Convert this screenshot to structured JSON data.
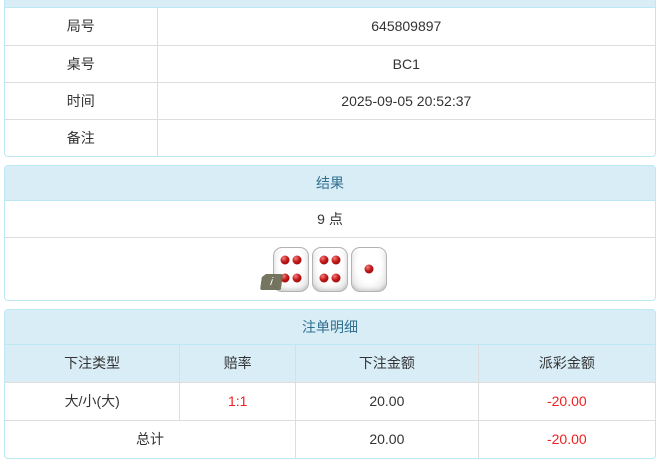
{
  "colors": {
    "panel_header_bg": "#d9edf7",
    "panel_header_text": "#31708f",
    "panel_border": "#bce8f1",
    "row_divider": "#dddddd",
    "body_text": "#333333",
    "negative_text": "#ee2222",
    "die_pip": "#c41616"
  },
  "game_info": {
    "rows": [
      {
        "label": "局号",
        "value": "645809897"
      },
      {
        "label": "桌号",
        "value": "BC1"
      },
      {
        "label": "时间",
        "value": "2025-09-05 20:52:37"
      },
      {
        "label": "备注",
        "value": ""
      }
    ]
  },
  "result": {
    "title": "结果",
    "points_text": "9 点",
    "dice_values": [
      4,
      4,
      1
    ],
    "info_badge_glyph": "i"
  },
  "bet_details": {
    "title": "注单明细",
    "columns": [
      "下注类型",
      "赔率",
      "下注金额",
      "派彩金额"
    ],
    "rows": [
      {
        "bet_type": "大/小(大)",
        "odds": "1:1",
        "bet_amount": "20.00",
        "payout": "-20.00"
      }
    ],
    "total_row": {
      "label": "总计",
      "bet_amount": "20.00",
      "payout": "-20.00"
    }
  }
}
